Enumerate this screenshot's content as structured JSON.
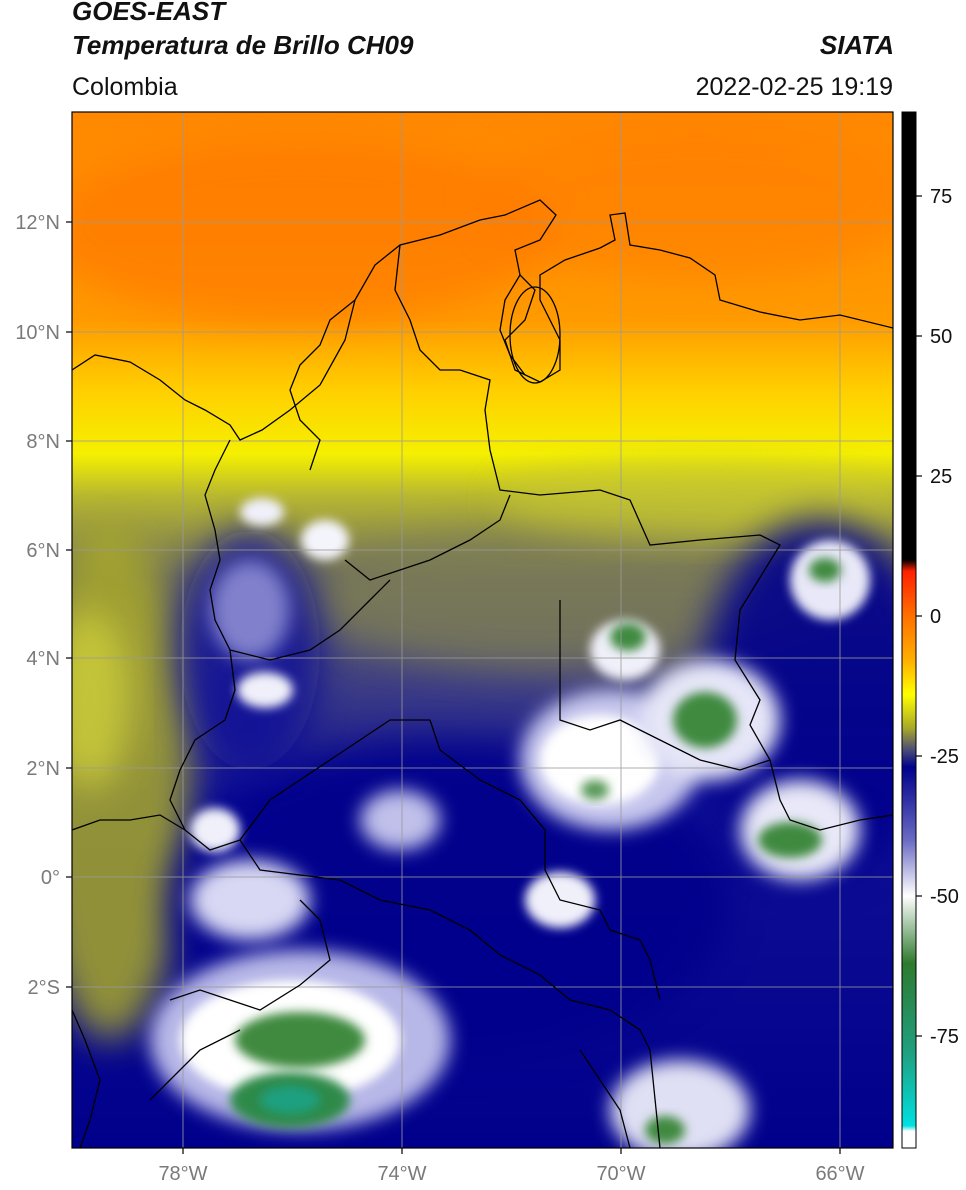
{
  "header": {
    "satellite": "GOES-EAST",
    "product": "Temperatura de Brillo CH09",
    "agency": "SIATA",
    "region": "Colombia",
    "datetime": "2022-02-25 19:19"
  },
  "axes": {
    "lat_ticks": [
      "12°N",
      "10°N",
      "8°N",
      "6°N",
      "4°N",
      "2°N",
      "0°",
      "2°S"
    ],
    "lon_ticks": [
      "78°W",
      "74°W",
      "70°W",
      "66°W"
    ]
  },
  "colorbar": {
    "tick_labels": [
      "75",
      "50",
      "25",
      "0",
      "-25",
      "-50",
      "-75"
    ],
    "tick_values": [
      75,
      50,
      25,
      0,
      -25,
      -50,
      -75
    ],
    "range": [
      -95,
      90
    ],
    "stops": [
      {
        "v": 90,
        "c": "#000000"
      },
      {
        "v": 10,
        "c": "#000000"
      },
      {
        "v": 8,
        "c": "#ff2000"
      },
      {
        "v": 0,
        "c": "#ff7000"
      },
      {
        "v": -8,
        "c": "#ffb000"
      },
      {
        "v": -14,
        "c": "#ffff00"
      },
      {
        "v": -20,
        "c": "#a8a82a"
      },
      {
        "v": -24,
        "c": "#4a4a78"
      },
      {
        "v": -27,
        "c": "#00008c"
      },
      {
        "v": -40,
        "c": "#6a6ac4"
      },
      {
        "v": -50,
        "c": "#ffffff"
      },
      {
        "v": -62,
        "c": "#2e7a2e"
      },
      {
        "v": -78,
        "c": "#1fa080"
      },
      {
        "v": -91,
        "c": "#00e0e0"
      },
      {
        "v": -92,
        "c": "#ffffff"
      },
      {
        "v": -95,
        "c": "#ffffff"
      }
    ]
  },
  "colors": {
    "warm_orange": "#ff7a00",
    "yellow": "#ffff00",
    "olive": "#a8a82a",
    "deep_blue": "#00008c",
    "white_cloud": "#ffffff",
    "green_core": "#2e7a2e",
    "border": "#000000",
    "grid": "#9a9a9a"
  }
}
